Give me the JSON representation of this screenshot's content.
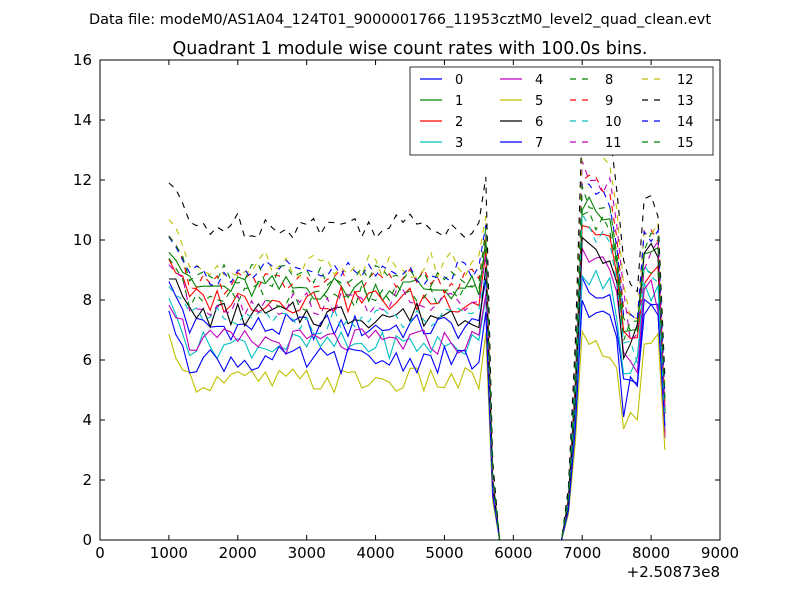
{
  "figure": {
    "suptitle": "Data file: modeM0/AS1A04_124T01_9000001766_11953cztM0_level2_quad_clean.evt",
    "title": "Quadrant 1 module wise count rates with 100.0s bins."
  },
  "chart_data": {
    "type": "line",
    "title": "Quadrant 1 module wise count rates with 100.0s bins.",
    "xlabel": "",
    "ylabel": "",
    "x_offset_label": "+2.50873e8",
    "xlim": [
      0,
      9000
    ],
    "ylim": [
      0,
      16
    ],
    "xticks": [
      0,
      1000,
      2000,
      3000,
      4000,
      5000,
      6000,
      7000,
      8000,
      9000
    ],
    "yticks": [
      0,
      2,
      4,
      6,
      8,
      10,
      12,
      14,
      16
    ],
    "grid": false,
    "legend_position": "top-right",
    "legend_columns": 4,
    "x": [
      1000,
      1100,
      1200,
      1300,
      1400,
      1500,
      1600,
      1700,
      1800,
      1900,
      2000,
      2100,
      2200,
      2300,
      2400,
      2500,
      2600,
      2700,
      2800,
      2900,
      3000,
      3100,
      3200,
      3300,
      3400,
      3500,
      3600,
      3700,
      3800,
      3900,
      4000,
      4100,
      4200,
      4300,
      4400,
      4500,
      4600,
      4700,
      4800,
      4900,
      5000,
      5100,
      5200,
      5300,
      5400,
      5500,
      5600,
      5700,
      5800,
      5900,
      6000,
      6100,
      6200,
      6300,
      6400,
      6500,
      6600,
      6700,
      6800,
      6900,
      7000,
      7100,
      7200,
      7300,
      7400,
      7500,
      7600,
      7700,
      7800,
      7900,
      8000,
      8100,
      8200
    ],
    "segments": {
      "gap_start_index": 48,
      "gap_end_index": 58,
      "active_end_index": 72
    },
    "series": [
      {
        "name": "0",
        "color": "#0000ff",
        "dash": "solid",
        "level": 7.1,
        "peak": 9.1,
        "post": 5.3,
        "end": 3.6
      },
      {
        "name": "1",
        "color": "#008000",
        "dash": "solid",
        "level": 8.4,
        "peak": 11.6,
        "post": 6.8,
        "end": 4.3
      },
      {
        "name": "2",
        "color": "#ff0000",
        "dash": "solid",
        "level": 8.0,
        "peak": 11.2,
        "post": 6.5,
        "end": 3.5
      },
      {
        "name": "3",
        "color": "#00bfbf",
        "dash": "solid",
        "level": 6.5,
        "peak": 9.4,
        "post": 5.8,
        "end": 3.7
      },
      {
        "name": "4",
        "color": "#bf00bf",
        "dash": "solid",
        "level": 6.6,
        "peak": 10.2,
        "post": 5.6,
        "end": 3.4
      },
      {
        "name": "5",
        "color": "#bfbf00",
        "dash": "solid",
        "level": 5.3,
        "peak": 7.2,
        "post": 4.2,
        "end": 3.0
      },
      {
        "name": "6",
        "color": "#000000",
        "dash": "solid",
        "level": 7.5,
        "peak": 10.4,
        "post": 6.8,
        "end": 4.2
      },
      {
        "name": "7",
        "color": "#0000ff",
        "dash": "solid",
        "level": 6.0,
        "peak": 8.2,
        "post": 5.1,
        "end": 3.8
      },
      {
        "name": "8",
        "color": "#008000",
        "dash": "dashed",
        "level": 8.1,
        "peak": 11.4,
        "post": 6.9,
        "end": 4.5
      },
      {
        "name": "9",
        "color": "#ff0000",
        "dash": "dashed",
        "level": 8.6,
        "peak": 12.6,
        "post": 7.2,
        "end": 4.6
      },
      {
        "name": "10",
        "color": "#00bfbf",
        "dash": "dashed",
        "level": 7.3,
        "peak": 11.0,
        "post": 6.3,
        "end": 4.0
      },
      {
        "name": "11",
        "color": "#bf00bf",
        "dash": "dashed",
        "level": 7.9,
        "peak": 12.8,
        "post": 6.8,
        "end": 4.2
      },
      {
        "name": "12",
        "color": "#bfbf00",
        "dash": "dashed",
        "level": 9.2,
        "peak": 13.6,
        "post": 7.6,
        "end": 5.0
      },
      {
        "name": "13",
        "color": "#000000",
        "dash": "dashed",
        "level": 10.5,
        "peak": 14.6,
        "post": 8.6,
        "end": 5.4
      },
      {
        "name": "14",
        "color": "#0000ff",
        "dash": "dashed",
        "level": 8.9,
        "peak": 12.4,
        "post": 7.4,
        "end": 4.8
      },
      {
        "name": "15",
        "color": "#008000",
        "dash": "dashed",
        "level": 8.8,
        "peak": 12.0,
        "post": 7.3,
        "end": 4.7
      }
    ]
  }
}
